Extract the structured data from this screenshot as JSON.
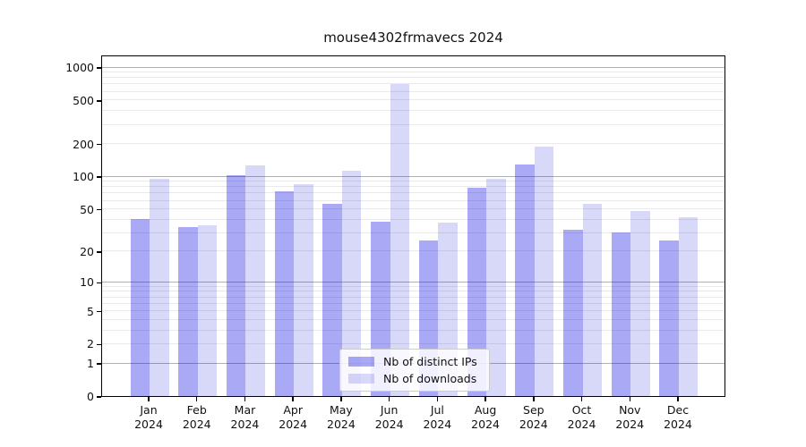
{
  "title": "mouse4302frmavecs 2024",
  "chart_data": {
    "type": "bar",
    "scale": "log10(value+1)",
    "grid": true,
    "legend_position": "inside-bottom-center",
    "yticks": [
      0,
      1,
      2,
      5,
      10,
      20,
      50,
      100,
      200,
      500,
      1000
    ],
    "ylim": [
      0,
      1300
    ],
    "categories": [
      {
        "month": "Jan",
        "year": "2024"
      },
      {
        "month": "Feb",
        "year": "2024"
      },
      {
        "month": "Mar",
        "year": "2024"
      },
      {
        "month": "Apr",
        "year": "2024"
      },
      {
        "month": "May",
        "year": "2024"
      },
      {
        "month": "Jun",
        "year": "2024"
      },
      {
        "month": "Jul",
        "year": "2024"
      },
      {
        "month": "Aug",
        "year": "2024"
      },
      {
        "month": "Sep",
        "year": "2024"
      },
      {
        "month": "Oct",
        "year": "2024"
      },
      {
        "month": "Nov",
        "year": "2024"
      },
      {
        "month": "Dec",
        "year": "2024"
      }
    ],
    "series": [
      {
        "name": "Nb of distinct IPs",
        "color": "rgba(10,10,230,0.35)",
        "values": [
          40,
          34,
          102,
          73,
          56,
          38,
          25,
          78,
          129,
          32,
          30,
          25
        ]
      },
      {
        "name": "Nb of downloads",
        "color": "rgba(10,10,215,0.16)",
        "values": [
          95,
          35,
          127,
          85,
          113,
          700,
          37,
          95,
          186,
          56,
          48,
          42
        ]
      }
    ]
  }
}
